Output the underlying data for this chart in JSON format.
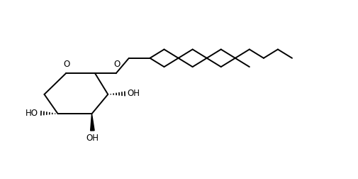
{
  "bg_color": "#ffffff",
  "line_color": "#000000",
  "font_size": 8.5,
  "line_width": 1.4,
  "fig_width": 5.05,
  "fig_height": 2.52,
  "dpi": 100,
  "ring_O": [
    1.55,
    2.75
  ],
  "C1": [
    2.45,
    2.75
  ],
  "C2": [
    2.85,
    2.1
  ],
  "C3": [
    2.35,
    1.5
  ],
  "C4": [
    1.3,
    1.5
  ],
  "C5": [
    0.88,
    2.1
  ],
  "gly_O": [
    3.1,
    2.75
  ],
  "CH2": [
    3.5,
    3.22
  ],
  "branch_C": [
    4.15,
    3.22
  ],
  "upper_x_step": 0.44,
  "upper_y_step": 0.27,
  "upper_n": 10,
  "lower_n": 7,
  "xlim": [
    0,
    10.1
  ],
  "ylim": [
    -0.5,
    5.0
  ]
}
